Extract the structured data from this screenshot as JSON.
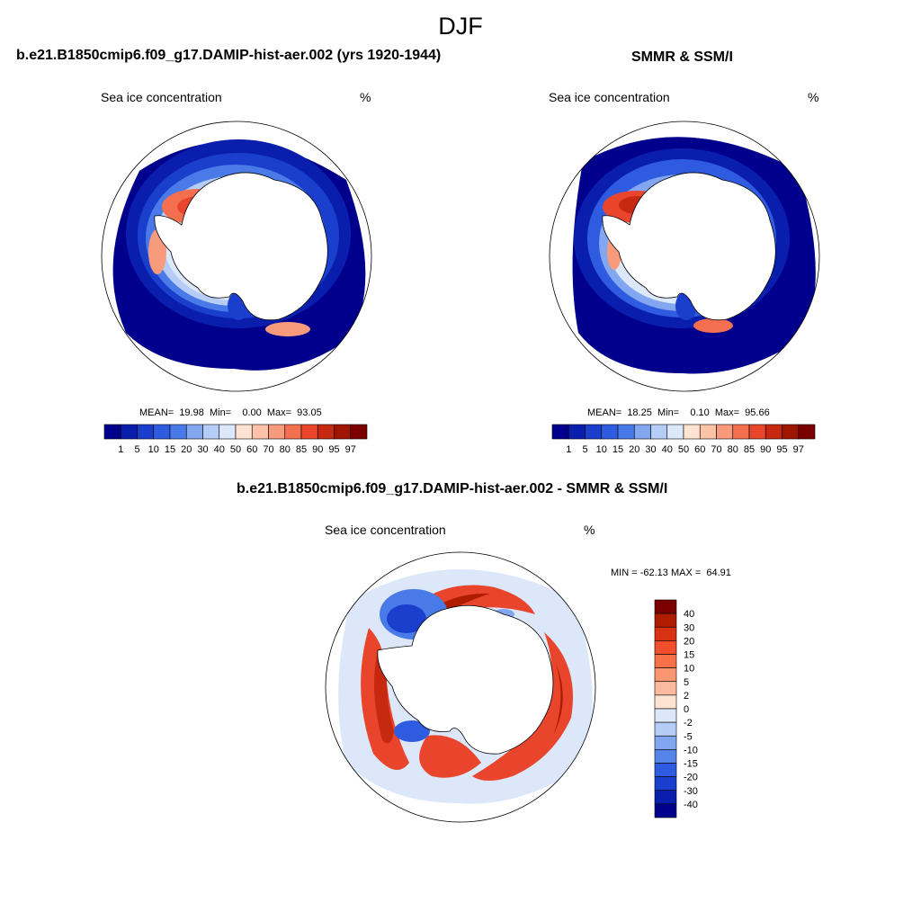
{
  "title": "DJF",
  "panels": [
    {
      "title": "b.e21.B1850cmip6.f09_g17.DAMIP-hist-aer.002 (yrs 1920-1944)",
      "variable": "Sea ice concentration",
      "units": "%",
      "stats_text": "MEAN=  19.98  Min=    0.00  Max=  93.05"
    },
    {
      "title": "SMMR & SSM/I",
      "variable": "Sea ice concentration",
      "units": "%",
      "stats_text": "MEAN=  18.25  Min=    0.10  Max=  95.66"
    },
    {
      "title": "b.e21.B1850cmip6.f09_g17.DAMIP-hist-aer.002 - SMMR & SSM/I",
      "variable": "Sea ice concentration",
      "units": "%",
      "stats_text": "MIN = -62.13 MAX =  64.91"
    }
  ],
  "concentration_colorbar": {
    "labels": [
      "1",
      "5",
      "10",
      "15",
      "20",
      "30",
      "40",
      "50",
      "60",
      "70",
      "80",
      "85",
      "90",
      "95",
      "97"
    ],
    "colors": [
      "#00008c",
      "#0a1eae",
      "#1a3fcc",
      "#2f5be0",
      "#4a7ae8",
      "#82a6f0",
      "#b5cdf6",
      "#dce8fa",
      "#fde3d1",
      "#fcc3a8",
      "#f89a7c",
      "#f46f4f",
      "#e8452c",
      "#c62810",
      "#a01500",
      "#7a0000"
    ]
  },
  "difference_colorbar": {
    "labels": [
      "40",
      "30",
      "20",
      "15",
      "10",
      "5",
      "2",
      "0",
      "-2",
      "-5",
      "-10",
      "-15",
      "-20",
      "-30",
      "-40"
    ],
    "colors": [
      "#7a0000",
      "#b01c00",
      "#d83212",
      "#f04e2c",
      "#f87048",
      "#fa9672",
      "#fcbb9e",
      "#fde3d1",
      "#dce8fa",
      "#b5cdf6",
      "#82a6f0",
      "#5585e9",
      "#2f5be0",
      "#1a3fcc",
      "#0a1eae",
      "#00008c"
    ]
  }
}
